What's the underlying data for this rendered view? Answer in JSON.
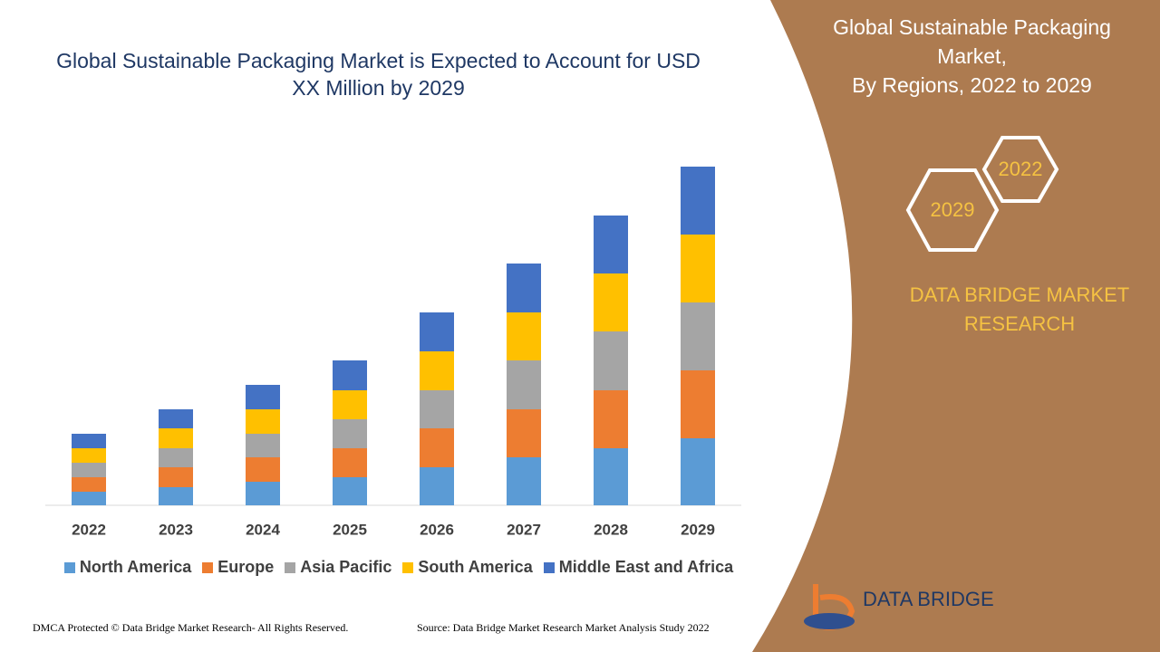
{
  "chart_data": {
    "type": "bar",
    "stacked": true,
    "title": "Global Sustainable Packaging Market is Expected to Account for USD XX Million by 2029",
    "categories": [
      "2022",
      "2023",
      "2024",
      "2025",
      "2026",
      "2027",
      "2028",
      "2029"
    ],
    "series": [
      {
        "name": "North America",
        "color": "#5b9bd5",
        "values": [
          15,
          20,
          26,
          31,
          42,
          53,
          63,
          74
        ]
      },
      {
        "name": "Europe",
        "color": "#ed7d31",
        "values": [
          16,
          22,
          27,
          32,
          43,
          53,
          64,
          75
        ]
      },
      {
        "name": "Asia Pacific",
        "color": "#a5a5a5",
        "values": [
          16,
          21,
          26,
          32,
          42,
          54,
          65,
          75
        ]
      },
      {
        "name": "South America",
        "color": "#ffc000",
        "values": [
          16,
          22,
          27,
          32,
          43,
          53,
          64,
          75
        ]
      },
      {
        "name": "Middle East and Africa",
        "color": "#4472c4",
        "values": [
          16,
          21,
          27,
          33,
          43,
          54,
          64,
          75
        ]
      }
    ],
    "legend": "bottom"
  },
  "side_panel": {
    "title": [
      "Global Sustainable Packaging",
      "Market,",
      "By Regions, 2022 to 2029"
    ],
    "hex_labels": [
      "2022",
      "2029"
    ],
    "brand": [
      "DATA BRIDGE MARKET",
      "RESEARCH"
    ],
    "logo_text": "DATA BRIDGE"
  },
  "footer": {
    "dmca": "DMCA Protected © Data Bridge Market Research- All Rights Reserved.",
    "source": "Source: Data Bridge Market Research Market Analysis Study 2022"
  }
}
